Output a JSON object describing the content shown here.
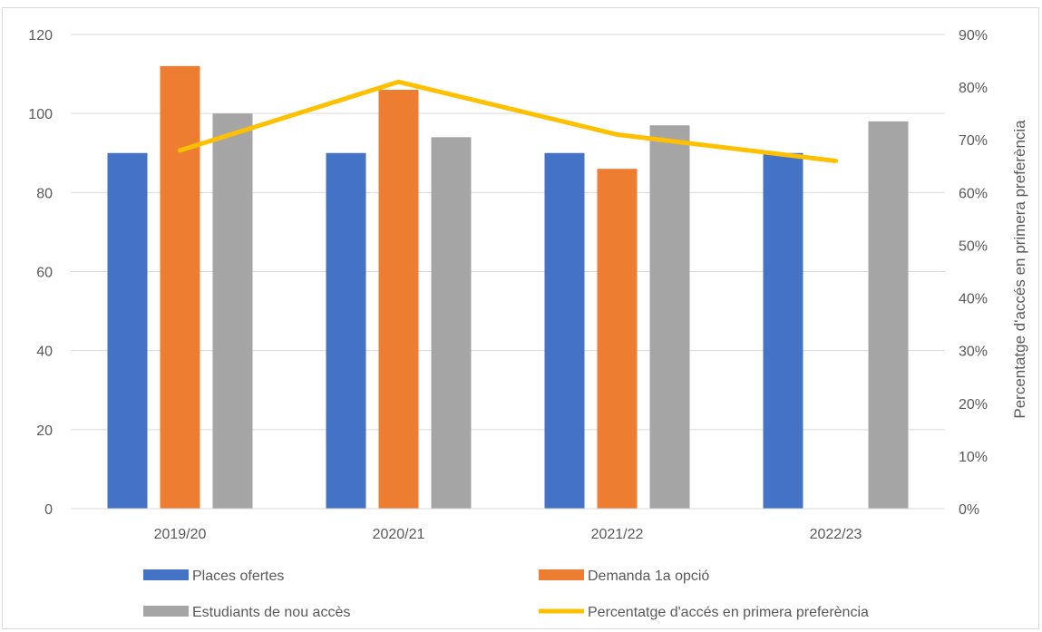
{
  "chart_data": {
    "type": "bar",
    "categories": [
      "2019/20",
      "2020/21",
      "2021/22",
      "2022/23"
    ],
    "series": [
      {
        "name": "Places ofertes",
        "type": "bar",
        "axis": "left",
        "color": "#4472C4",
        "values": [
          90,
          90,
          90,
          90
        ]
      },
      {
        "name": "Demanda 1a opció",
        "type": "bar",
        "axis": "left",
        "color": "#ED7D31",
        "values": [
          112,
          106,
          86,
          0
        ]
      },
      {
        "name": "Estudiants de nou accès",
        "type": "bar",
        "axis": "left",
        "color": "#A5A5A5",
        "values": [
          100,
          94,
          97,
          98
        ]
      },
      {
        "name": "Percentatge d'accés en primera preferència",
        "type": "line",
        "axis": "right",
        "color": "#FFC000",
        "values": [
          0.68,
          0.81,
          0.71,
          0.66
        ]
      }
    ],
    "ylim": [
      0,
      120
    ],
    "y_ticks": [
      "0",
      "20",
      "40",
      "60",
      "80",
      "100",
      "120"
    ],
    "y2lim": [
      0,
      0.9
    ],
    "y2_ticks": [
      "0%",
      "10%",
      "20%",
      "30%",
      "40%",
      "50%",
      "60%",
      "70%",
      "80%",
      "90%"
    ],
    "y2label": "Percentatge d'accés en primera preferència",
    "grid": true,
    "legend_position": "bottom"
  }
}
